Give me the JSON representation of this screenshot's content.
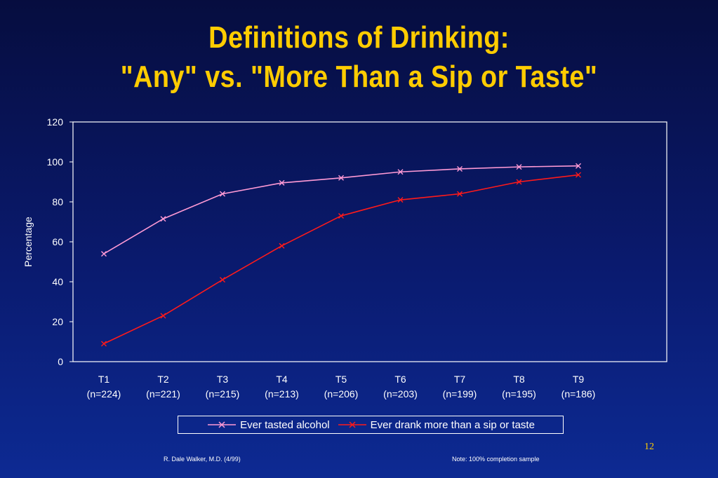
{
  "title": {
    "line1": "Definitions of Drinking:",
    "line2": "\"Any\" vs. \"More Than a Sip or Taste\""
  },
  "colors": {
    "title": "#ffcc00",
    "series1": "#ff9ad5",
    "series2": "#ff1a1a",
    "axis": "#ffffff"
  },
  "chart_data": {
    "type": "line",
    "ylabel": "Percentage",
    "ylim": [
      0,
      120
    ],
    "yticks": [
      0,
      20,
      40,
      60,
      80,
      100,
      120
    ],
    "categories": [
      "T1",
      "T2",
      "T3",
      "T4",
      "T5",
      "T6",
      "T7",
      "T8",
      "T9"
    ],
    "category_sublabels": [
      "(n=224)",
      "(n=221)",
      "(n=215)",
      "(n=213)",
      "(n=206)",
      "(n=203)",
      "(n=199)",
      "(n=195)",
      "(n=186)"
    ],
    "grid": false,
    "legend_position": "bottom",
    "series": [
      {
        "name": "Ever tasted alcohol",
        "color": "#ff9ad5",
        "marker": "x",
        "values": [
          54,
          71.5,
          84,
          89.5,
          92,
          95,
          96.5,
          97.5,
          98
        ]
      },
      {
        "name": "Ever drank more than a sip or taste",
        "color": "#ff1a1a",
        "marker": "x",
        "values": [
          9,
          23,
          41,
          58,
          73,
          81,
          84,
          90,
          93.5
        ]
      }
    ]
  },
  "page_number": "12",
  "footer": {
    "left": "R. Dale Walker, M.D. (4/99)",
    "right": "Note:   100% completion sample"
  }
}
